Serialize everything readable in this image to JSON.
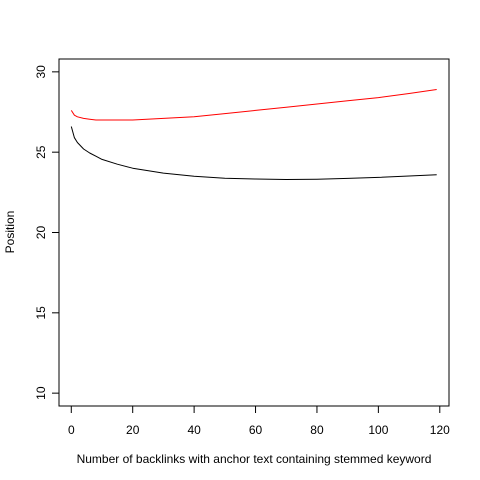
{
  "chart_data": {
    "type": "line",
    "title": "",
    "xlabel": "Number of backlinks with anchor text containing stemmed keyword",
    "ylabel": "Position",
    "xlim": [
      -4,
      123
    ],
    "ylim": [
      9.2,
      30.8
    ],
    "xticks": [
      0,
      20,
      40,
      60,
      80,
      100,
      120
    ],
    "yticks": [
      10,
      15,
      20,
      25,
      30
    ],
    "grid": false,
    "legend": "none",
    "series": [
      {
        "color": "#ff0000",
        "x": [
          0,
          1,
          2,
          4,
          6,
          8,
          10,
          15,
          20,
          30,
          40,
          50,
          60,
          70,
          80,
          90,
          100,
          110,
          119
        ],
        "y": [
          27.6,
          27.3,
          27.2,
          27.1,
          27.05,
          27.0,
          27.0,
          27.0,
          27.0,
          27.1,
          27.2,
          27.4,
          27.6,
          27.8,
          28.0,
          28.2,
          28.4,
          28.65,
          28.9
        ]
      },
      {
        "color": "#000000",
        "x": [
          0,
          1,
          2,
          4,
          6,
          8,
          10,
          15,
          20,
          30,
          40,
          50,
          60,
          70,
          80,
          90,
          100,
          110,
          119
        ],
        "y": [
          26.6,
          25.9,
          25.6,
          25.2,
          24.95,
          24.75,
          24.55,
          24.25,
          24.0,
          23.7,
          23.5,
          23.38,
          23.33,
          23.3,
          23.32,
          23.37,
          23.43,
          23.52,
          23.6
        ]
      }
    ]
  }
}
